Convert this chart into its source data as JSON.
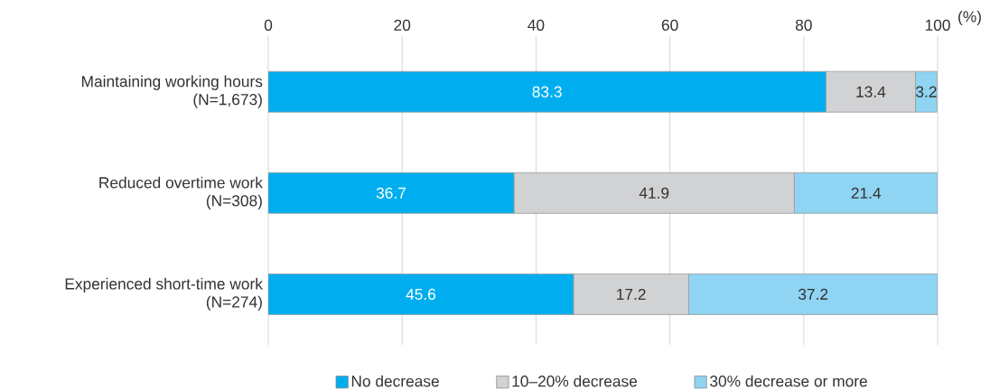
{
  "chart_data": {
    "type": "bar",
    "orientation": "horizontal",
    "stacked": true,
    "xlabel": "(%)",
    "categories": [
      "Maintaining working hours\n(N=1,673)",
      "Reduced overtime work\n(N=308)",
      "Experienced short-time work\n(N=274)"
    ],
    "series": [
      {
        "name": "No decrease",
        "color": "#00aeef",
        "values": [
          83.3,
          36.7,
          45.6
        ]
      },
      {
        "name": "10–20% decrease",
        "color": "#d1d2d4",
        "values": [
          13.4,
          41.9,
          17.2
        ]
      },
      {
        "name": "30% decrease or more",
        "color": "#8fd4f2",
        "values": [
          3.2,
          21.4,
          37.2
        ]
      }
    ],
    "xlim": [
      0,
      100
    ],
    "xticks": [
      0,
      20,
      40,
      60,
      80,
      100
    ],
    "grid": "x",
    "legend": "bottom",
    "data_labels": true
  }
}
